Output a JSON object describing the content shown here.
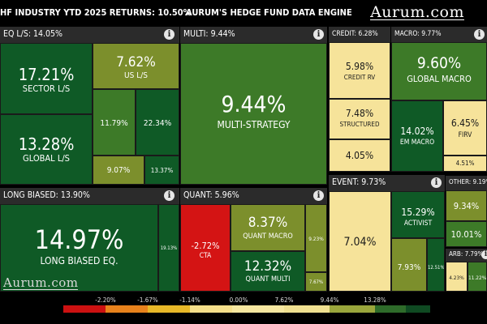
{
  "header": {
    "title": "HF INDUSTRY YTD 2025 RETURNS: 10.50%",
    "subtitle": "AURUM'S HEDGE FUND DATA ENGINE",
    "brand": "Aurum.com"
  },
  "watermark": "Aurum.com",
  "sections": {
    "eq_ls": "EQ L/S: 14.05%",
    "multi": "MULTI: 9.44%",
    "credit": "CREDIT: 6.28%",
    "macro": "MACRO: 9.77%",
    "long_biased": "LONG BIASED: 13.90%",
    "quant": "QUANT: 5.96%",
    "event": "EVENT: 9.73%",
    "other": "OTHER: 9.19%",
    "arb": "ARB: 7.79%"
  },
  "cells": {
    "sector_ls": {
      "value": "17.21%",
      "label": "SECTOR L/S"
    },
    "us_ls": {
      "value": "7.62%",
      "label": "US L/S"
    },
    "eq_small1": {
      "value": "11.79%"
    },
    "eq_small2": {
      "value": "22.34%"
    },
    "global_ls": {
      "value": "13.28%",
      "label": "GLOBAL L/S"
    },
    "eq_small3": {
      "value": "9.07%"
    },
    "eq_small4": {
      "value": "13.37%"
    },
    "multi_strategy": {
      "value": "9.44%",
      "label": "MULTI-STRATEGY"
    },
    "credit_rv": {
      "value": "5.98%",
      "label": "CREDIT RV"
    },
    "structured": {
      "value": "7.48%",
      "label": "STRUCTURED"
    },
    "credit_small": {
      "value": "4.05%"
    },
    "global_macro": {
      "value": "9.60%",
      "label": "GLOBAL MACRO"
    },
    "em_macro": {
      "value": "14.02%",
      "label": "EM MACRO"
    },
    "firv": {
      "value": "6.45%",
      "label": "FIRV"
    },
    "macro_small": {
      "value": "4.51%"
    },
    "long_biased_eq": {
      "value": "14.97%",
      "label": "LONG BIASED EQ."
    },
    "lb_small": {
      "value": "19.13%"
    },
    "cta": {
      "value": "-2.72%",
      "label": "CTA"
    },
    "quant_macro": {
      "value": "8.37%",
      "label": "QUANT MACRO"
    },
    "quant_small1": {
      "value": "9.23%"
    },
    "quant_multi": {
      "value": "12.32%",
      "label": "QUANT MULTI"
    },
    "quant_small2": {
      "value": "7.67%"
    },
    "event_main": {
      "value": "7.04%"
    },
    "activist": {
      "value": "15.29%",
      "label": "ACTIVIST"
    },
    "event_small1": {
      "value": "7.93%"
    },
    "event_small2": {
      "value": "12.51%"
    },
    "other1": {
      "value": "9.34%"
    },
    "other2": {
      "value": "10.01%"
    },
    "arb1": {
      "value": "4.23%"
    },
    "arb2": {
      "value": "11.22%"
    }
  },
  "legend": {
    "ticks": [
      "-2.20%",
      "-1.67%",
      "-1.14%",
      "0.00%",
      "7.62%",
      "9.44%",
      "13.28%"
    ],
    "colors": [
      "#cc1111",
      "#e8821c",
      "#e8b828",
      "#f5df8a",
      "#f7e7a0",
      "#9aa63c",
      "#5d8a2e",
      "#2e6b2a",
      "#0f4a22"
    ]
  },
  "colors": {
    "deep_green": "#0f5a26",
    "mid_green": "#3d7a28",
    "olive": "#7c8f2c",
    "pale_yellow": "#f6e39a",
    "red": "#d41414",
    "section_header": "#2b2b2b"
  }
}
